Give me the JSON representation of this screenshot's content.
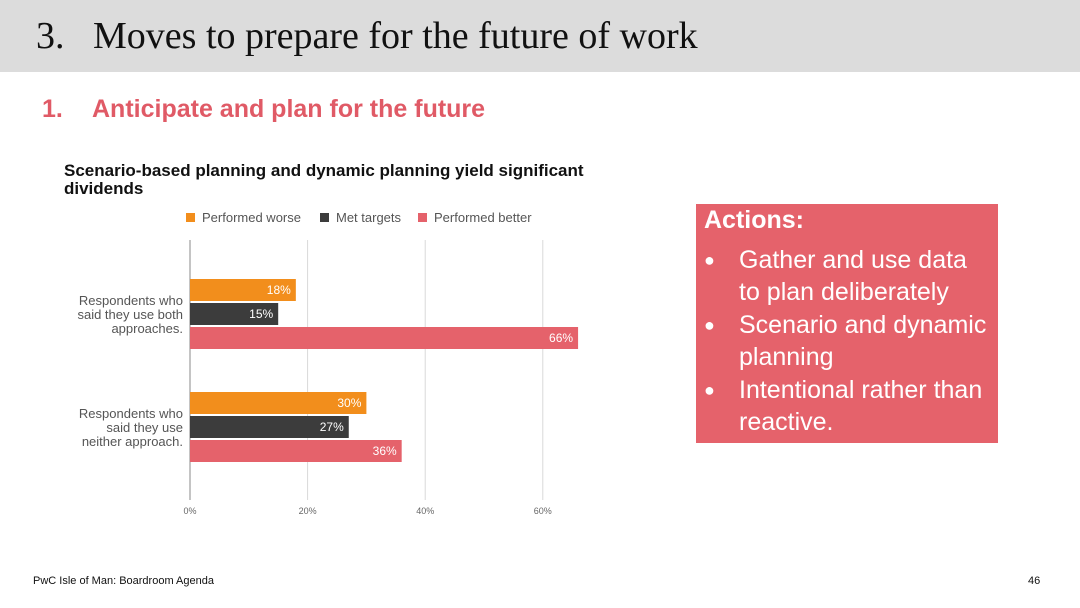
{
  "slide": {
    "number": "3.",
    "title": "Moves to prepare for the future of work",
    "subheading_number": "1.",
    "subheading": "Anticipate and plan for the future"
  },
  "actions": {
    "title": "Actions:",
    "items": [
      "Gather and use data to plan deliberately",
      "Scenario and dynamic planning",
      "Intentional rather than reactive."
    ]
  },
  "footer": {
    "left": "PwC Isle of Man: Boardroom Agenda",
    "page": "46"
  },
  "chart_data": {
    "type": "bar",
    "orientation": "horizontal",
    "title_lines": [
      "Scenario-based planning and dynamic planning yield significant",
      "dividends"
    ],
    "categories": [
      [
        "Respondents who",
        "said they use both",
        "approaches."
      ],
      [
        "Respondents who",
        "said they use",
        "neither approach."
      ]
    ],
    "series": [
      {
        "name": "Performed worse",
        "color": "#f28e1c",
        "values": [
          18,
          30
        ],
        "labels": [
          "18%",
          "30%"
        ]
      },
      {
        "name": "Met targets",
        "color": "#3c3c3c",
        "values": [
          15,
          27
        ],
        "labels": [
          "15%",
          "27%"
        ]
      },
      {
        "name": "Performed better",
        "color": "#e5626b",
        "values": [
          66,
          36
        ],
        "labels": [
          "66%",
          "36%"
        ]
      }
    ],
    "x_ticks": [
      0,
      20,
      40,
      60
    ],
    "x_tick_labels": [
      "0%",
      "20%",
      "40%",
      "60%"
    ],
    "xlim": [
      0,
      60
    ],
    "legend_position": "top",
    "grid": true
  }
}
